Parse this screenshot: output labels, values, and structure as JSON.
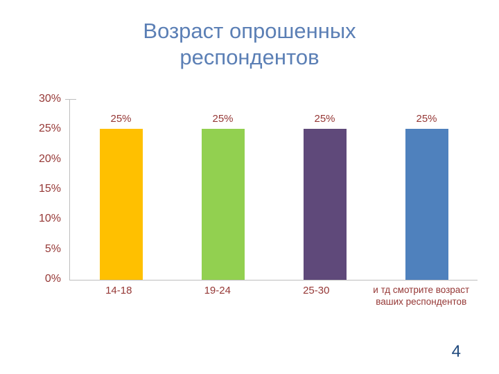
{
  "slide": {
    "title": "Возраст опрошенных респондентов",
    "page_number": "4"
  },
  "colors": {
    "title_text": "#5b7fb5",
    "axis_text": "#953735",
    "axis_line": "#bdbdbd",
    "page_number_text": "#1f497d",
    "background": "#ffffff"
  },
  "chart_data": {
    "type": "bar",
    "title": "Возраст опрошенных респондентов",
    "categories": [
      "14-18",
      "19-24",
      "25-30",
      "и тд смотрите возраст ваших респондентов"
    ],
    "values": [
      25,
      25,
      25,
      25
    ],
    "data_labels": [
      "25%",
      "25%",
      "25%",
      "25%"
    ],
    "bar_colors": [
      "#ffc000",
      "#92d050",
      "#5f497a",
      "#4f81bd"
    ],
    "ylabel_ticks": [
      "30%",
      "25%",
      "20%",
      "15%",
      "10%",
      "5%",
      "0%"
    ],
    "xlabel": "",
    "ylabel": "",
    "ylim": [
      0,
      30
    ],
    "grid": false,
    "legend": "none"
  }
}
